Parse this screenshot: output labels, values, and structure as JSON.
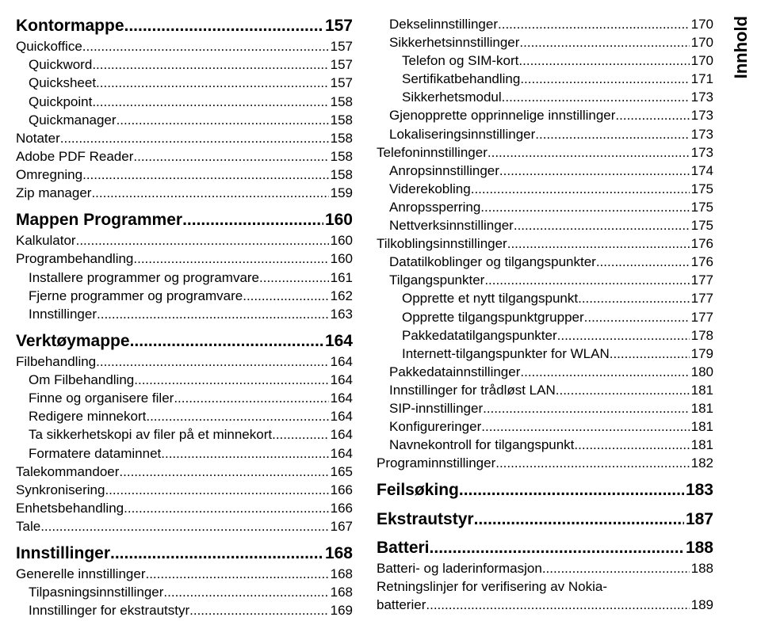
{
  "sidebar_label": "Innhold",
  "fonts": {
    "section_size": 21,
    "item_size": 17,
    "sidebar_size": 22
  },
  "colors": {
    "text": "#000000",
    "background": "#ffffff"
  },
  "col1": [
    {
      "type": "section",
      "label": "Kontormappe",
      "page": "157"
    },
    {
      "type": "item",
      "label": "Quickoffice",
      "page": "157"
    },
    {
      "type": "item",
      "indent": 1,
      "label": "Quickword",
      "page": "157"
    },
    {
      "type": "item",
      "indent": 1,
      "label": "Quicksheet",
      "page": "157"
    },
    {
      "type": "item",
      "indent": 1,
      "label": "Quickpoint",
      "page": "158"
    },
    {
      "type": "item",
      "indent": 1,
      "label": "Quickmanager",
      "page": "158"
    },
    {
      "type": "item",
      "label": "Notater",
      "page": "158"
    },
    {
      "type": "item",
      "label": "Adobe PDF Reader",
      "page": "158"
    },
    {
      "type": "item",
      "label": "Omregning",
      "page": "158"
    },
    {
      "type": "item",
      "label": "Zip manager",
      "page": "159"
    },
    {
      "type": "section",
      "gap": true,
      "label": "Mappen Programmer",
      "page": "160"
    },
    {
      "type": "item",
      "label": "Kalkulator",
      "page": "160"
    },
    {
      "type": "item",
      "label": "Programbehandling",
      "page": "160"
    },
    {
      "type": "item",
      "indent": 1,
      "label": "Installere programmer og programvare",
      "page": "161"
    },
    {
      "type": "item",
      "indent": 1,
      "label": "Fjerne programmer og programvare",
      "page": "162"
    },
    {
      "type": "item",
      "indent": 1,
      "label": "Innstillinger",
      "page": "163"
    },
    {
      "type": "section",
      "gap": true,
      "label": "Verktøymappe",
      "page": "164"
    },
    {
      "type": "item",
      "label": "Filbehandling",
      "page": "164"
    },
    {
      "type": "item",
      "indent": 1,
      "label": "Om Filbehandling",
      "page": "164"
    },
    {
      "type": "item",
      "indent": 1,
      "label": "Finne og organisere filer",
      "page": "164"
    },
    {
      "type": "item",
      "indent": 1,
      "label": "Redigere minnekort",
      "page": "164"
    },
    {
      "type": "item",
      "indent": 1,
      "label": "Ta sikkerhetskopi av filer på et minnekort",
      "page": "164"
    },
    {
      "type": "item",
      "indent": 1,
      "label": "Formatere dataminnet",
      "page": "164"
    },
    {
      "type": "item",
      "label": "Talekommandoer",
      "page": "165"
    },
    {
      "type": "item",
      "label": "Synkronisering",
      "page": "166"
    },
    {
      "type": "item",
      "label": "Enhetsbehandling",
      "page": "166"
    },
    {
      "type": "item",
      "label": "Tale",
      "page": "167"
    },
    {
      "type": "section",
      "gap": true,
      "label": "Innstillinger",
      "page": "168"
    },
    {
      "type": "item",
      "label": "Generelle innstillinger",
      "page": "168"
    },
    {
      "type": "item",
      "indent": 1,
      "label": "Tilpasningsinnstillinger",
      "page": "168"
    },
    {
      "type": "item",
      "indent": 1,
      "label": "Innstillinger for ekstrautstyr",
      "page": "169"
    }
  ],
  "col2": [
    {
      "type": "item",
      "indent": 1,
      "label": "Dekselinnstillinger",
      "page": "170"
    },
    {
      "type": "item",
      "indent": 1,
      "label": "Sikkerhetsinnstillinger",
      "page": "170"
    },
    {
      "type": "item",
      "indent": 2,
      "label": "Telefon og SIM-kort",
      "page": "170"
    },
    {
      "type": "item",
      "indent": 2,
      "label": "Sertifikatbehandling",
      "page": "171"
    },
    {
      "type": "item",
      "indent": 2,
      "label": "Sikkerhetsmodul",
      "page": "173"
    },
    {
      "type": "item",
      "indent": 1,
      "label": "Gjenopprette opprinnelige innstillinger",
      "page": "173"
    },
    {
      "type": "item",
      "indent": 1,
      "label": "Lokaliseringsinnstillinger",
      "page": "173"
    },
    {
      "type": "item",
      "label": "Telefoninnstillinger",
      "page": "173"
    },
    {
      "type": "item",
      "indent": 1,
      "label": "Anropsinnstillinger",
      "page": "174"
    },
    {
      "type": "item",
      "indent": 1,
      "label": "Viderekobling",
      "page": "175"
    },
    {
      "type": "item",
      "indent": 1,
      "label": "Anropssperring",
      "page": "175"
    },
    {
      "type": "item",
      "indent": 1,
      "label": "Nettverksinnstillinger",
      "page": "175"
    },
    {
      "type": "item",
      "label": "Tilkoblingsinnstillinger",
      "page": "176"
    },
    {
      "type": "item",
      "indent": 1,
      "label": "Datatilkoblinger og tilgangspunkter",
      "page": "176"
    },
    {
      "type": "item",
      "indent": 1,
      "label": "Tilgangspunkter",
      "page": "177"
    },
    {
      "type": "item",
      "indent": 2,
      "label": "Opprette et nytt tilgangspunkt",
      "page": "177"
    },
    {
      "type": "item",
      "indent": 2,
      "label": "Opprette tilgangspunktgrupper",
      "page": "177"
    },
    {
      "type": "item",
      "indent": 2,
      "label": "Pakkedatatilgangspunkter",
      "page": "178"
    },
    {
      "type": "item",
      "indent": 2,
      "label": "Internett-tilgangspunkter for WLAN",
      "page": "179"
    },
    {
      "type": "item",
      "indent": 1,
      "label": "Pakkedatainnstillinger",
      "page": "180"
    },
    {
      "type": "item",
      "indent": 1,
      "label": "Innstillinger for trådløst LAN",
      "page": "181"
    },
    {
      "type": "item",
      "indent": 1,
      "label": "SIP-innstillinger",
      "page": "181"
    },
    {
      "type": "item",
      "indent": 1,
      "label": "Konfigureringer",
      "page": "181"
    },
    {
      "type": "item",
      "indent": 1,
      "label": "Navnekontroll for tilgangspunkt",
      "page": "181"
    },
    {
      "type": "item",
      "label": "Programinnstillinger",
      "page": "182"
    },
    {
      "type": "section",
      "gap": true,
      "label": "Feilsøking",
      "page": "183"
    },
    {
      "type": "section",
      "gap": true,
      "label": "Ekstrautstyr",
      "page": "187"
    },
    {
      "type": "section",
      "gap": true,
      "label": "Batteri",
      "page": "188"
    },
    {
      "type": "item",
      "label": "Batteri- og laderinformasjon",
      "page": "188"
    },
    {
      "type": "item",
      "label": "Retningslinjer for verifisering av Nokia-batterier",
      "page": "189",
      "wrap": [
        "Retningslinjer for verifisering av Nokia-",
        "batterier"
      ]
    }
  ]
}
